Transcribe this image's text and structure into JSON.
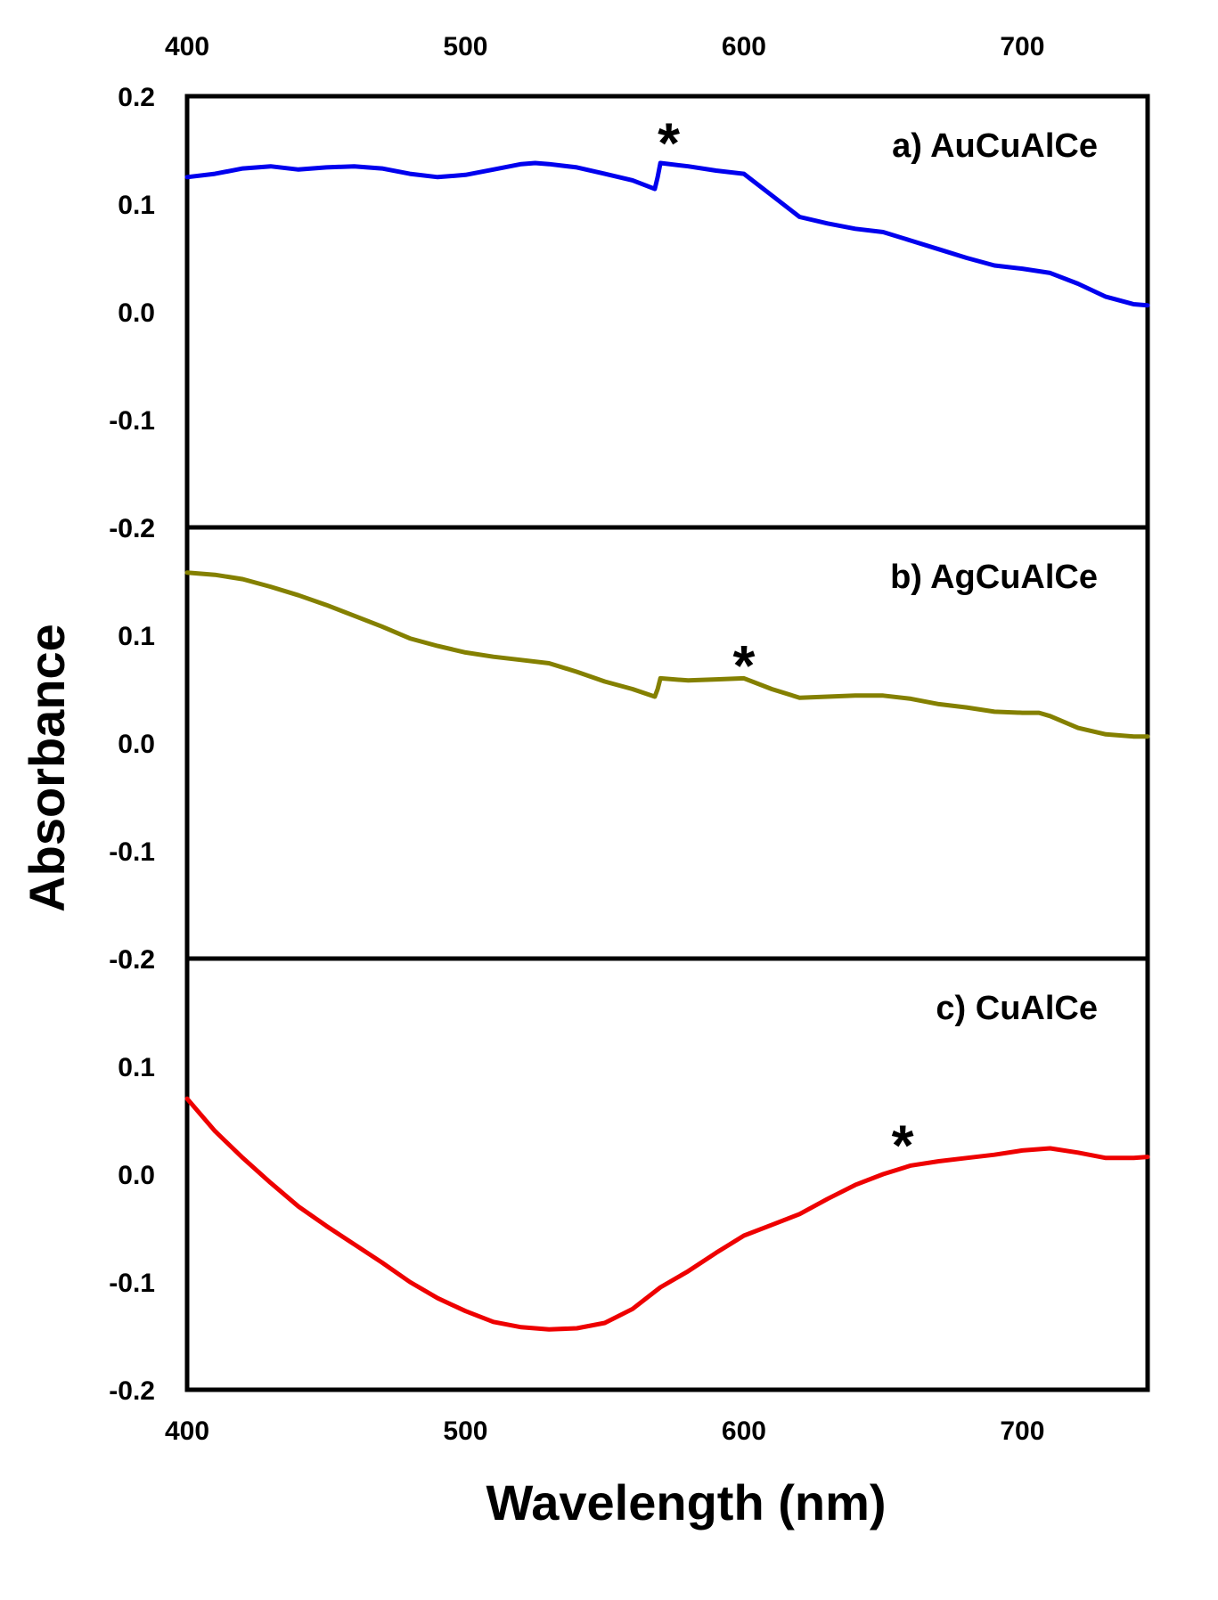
{
  "chart_data": {
    "type": "line",
    "title": "",
    "xlabel": "Wavelength (nm)",
    "ylabel": "Absorbance",
    "xlim": [
      400,
      745
    ],
    "xticks": [
      "400",
      "500",
      "600",
      "700"
    ],
    "xtick_values": [
      400,
      500,
      600,
      700
    ],
    "yticks": [
      "0.2",
      "0.1",
      "0.0",
      "-0.1",
      "-0.2"
    ],
    "ytick_values": [
      0.2,
      0.1,
      0.0,
      -0.1,
      -0.2
    ],
    "ylim": [
      -0.2,
      0.2
    ],
    "grid": false,
    "panels": [
      {
        "id": "a",
        "label": "a) AuCuAlCe",
        "color": "#0000ee",
        "marker": "*",
        "marker_at": [
          573,
          0.17
        ],
        "x": [
          400,
          410,
          420,
          430,
          440,
          450,
          460,
          470,
          480,
          490,
          500,
          510,
          520,
          525,
          530,
          540,
          550,
          560,
          568,
          569,
          570,
          580,
          590,
          600,
          610,
          620,
          630,
          640,
          650,
          660,
          670,
          680,
          690,
          700,
          710,
          720,
          730,
          740,
          745
        ],
        "y": [
          0.125,
          0.128,
          0.133,
          0.135,
          0.132,
          0.134,
          0.135,
          0.133,
          0.128,
          0.125,
          0.127,
          0.132,
          0.137,
          0.138,
          0.137,
          0.134,
          0.128,
          0.122,
          0.114,
          0.125,
          0.138,
          0.135,
          0.131,
          0.128,
          0.108,
          0.088,
          0.082,
          0.077,
          0.074,
          0.066,
          0.058,
          0.05,
          0.043,
          0.04,
          0.036,
          0.026,
          0.014,
          0.007,
          0.006
        ]
      },
      {
        "id": "b",
        "label": "b) AgCuAlCe",
        "color": "#848000",
        "marker": "*",
        "marker_at": [
          600,
          0.085
        ],
        "x": [
          400,
          410,
          420,
          430,
          440,
          450,
          460,
          470,
          480,
          490,
          500,
          510,
          520,
          530,
          540,
          550,
          560,
          568,
          569,
          570,
          580,
          590,
          600,
          610,
          620,
          630,
          640,
          650,
          660,
          670,
          680,
          690,
          700,
          706,
          710,
          720,
          730,
          740,
          745
        ],
        "y": [
          0.158,
          0.156,
          0.152,
          0.145,
          0.137,
          0.128,
          0.118,
          0.108,
          0.097,
          0.09,
          0.084,
          0.08,
          0.077,
          0.074,
          0.066,
          0.057,
          0.05,
          0.043,
          0.05,
          0.06,
          0.058,
          0.059,
          0.06,
          0.05,
          0.042,
          0.043,
          0.044,
          0.044,
          0.041,
          0.036,
          0.033,
          0.029,
          0.028,
          0.028,
          0.025,
          0.014,
          0.008,
          0.006,
          0.006
        ]
      },
      {
        "id": "c",
        "label": "c) CuAlCe",
        "color": "#ee0000",
        "marker": "*",
        "marker_at": [
          657,
          0.04
        ],
        "x": [
          400,
          410,
          420,
          430,
          440,
          450,
          460,
          470,
          480,
          490,
          500,
          510,
          520,
          530,
          540,
          550,
          560,
          570,
          580,
          590,
          600,
          610,
          620,
          630,
          640,
          650,
          660,
          670,
          680,
          690,
          700,
          710,
          720,
          730,
          740,
          745
        ],
        "y": [
          0.07,
          0.04,
          0.015,
          -0.008,
          -0.03,
          -0.048,
          -0.065,
          -0.082,
          -0.1,
          -0.115,
          -0.127,
          -0.137,
          -0.142,
          -0.144,
          -0.143,
          -0.138,
          -0.125,
          -0.105,
          -0.09,
          -0.073,
          -0.057,
          -0.047,
          -0.037,
          -0.023,
          -0.01,
          0.0,
          0.008,
          0.012,
          0.015,
          0.018,
          0.022,
          0.024,
          0.02,
          0.015,
          0.015,
          0.016
        ]
      }
    ]
  }
}
